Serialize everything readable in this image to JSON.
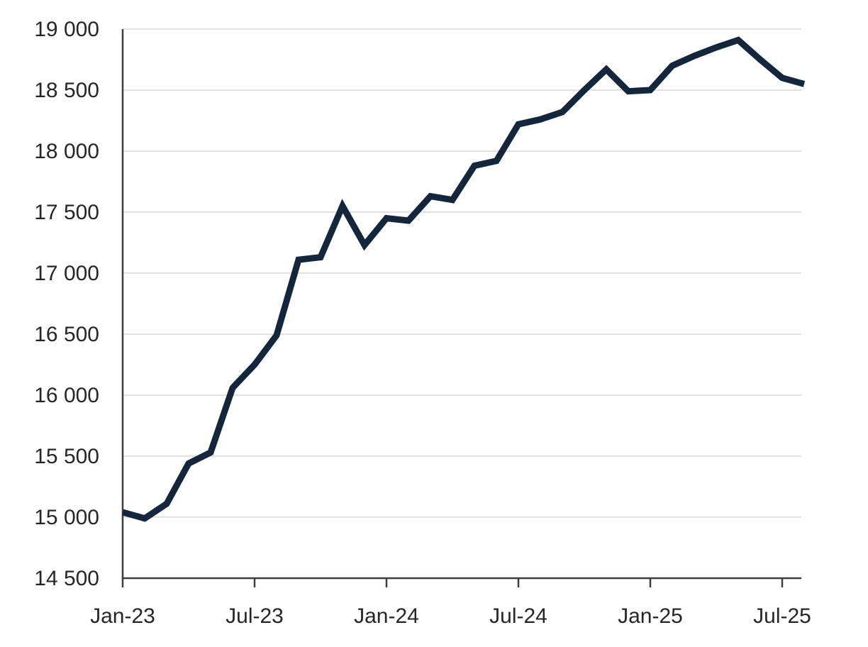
{
  "chart": {
    "colors": {
      "line": "#13263C",
      "grid": "#D9D9D9",
      "axis": "#3D3D3D",
      "text": "#262626",
      "background": "#FFFFFF"
    }
  },
  "chart_data": {
    "type": "line",
    "title": "",
    "xlabel": "",
    "ylabel": "",
    "legend": "none",
    "grid": "horizontal",
    "ylim": [
      14500,
      19000
    ],
    "y_tick_step": 500,
    "categories": [
      "Jan-23",
      "Feb-23",
      "Mar-23",
      "Apr-23",
      "May-23",
      "Jun-23",
      "Jul-23",
      "Aug-23",
      "Sep-23",
      "Oct-23",
      "Nov-23",
      "Dec-23",
      "Jan-24",
      "Feb-24",
      "Mar-24",
      "Apr-24",
      "May-24",
      "Jun-24",
      "Jul-24",
      "Aug-24",
      "Sep-24",
      "Oct-24",
      "Nov-24",
      "Dec-24",
      "Jan-25",
      "Feb-25",
      "Mar-25",
      "Apr-25",
      "May-25",
      "Jun-25",
      "Jul-25",
      "Aug-25"
    ],
    "series": [
      {
        "name": "value",
        "values": [
          15040,
          14990,
          15110,
          15440,
          15530,
          16060,
          16250,
          16490,
          17110,
          17130,
          17550,
          17230,
          17450,
          17430,
          17630,
          17600,
          17880,
          17920,
          18220,
          18260,
          18320,
          18500,
          18670,
          18490,
          18500,
          18700,
          18780,
          18850,
          18910,
          18750,
          18600,
          18550
        ]
      }
    ],
    "y_ticks": [
      {
        "value": 14500,
        "label": "14 500"
      },
      {
        "value": 15000,
        "label": "15 000"
      },
      {
        "value": 15500,
        "label": "15 500"
      },
      {
        "value": 16000,
        "label": "16 000"
      },
      {
        "value": 16500,
        "label": "16 500"
      },
      {
        "value": 17000,
        "label": "17 000"
      },
      {
        "value": 17500,
        "label": "17 500"
      },
      {
        "value": 18000,
        "label": "18 000"
      },
      {
        "value": 18500,
        "label": "18 500"
      },
      {
        "value": 19000,
        "label": "19 000"
      }
    ],
    "x_ticks": [
      {
        "month_index": 0,
        "label": "Jan-23"
      },
      {
        "month_index": 6,
        "label": "Jul-23"
      },
      {
        "month_index": 12,
        "label": "Jan-24"
      },
      {
        "month_index": 18,
        "label": "Jul-24"
      },
      {
        "month_index": 24,
        "label": "Jan-25"
      },
      {
        "month_index": 30,
        "label": "Jul-25"
      }
    ]
  }
}
